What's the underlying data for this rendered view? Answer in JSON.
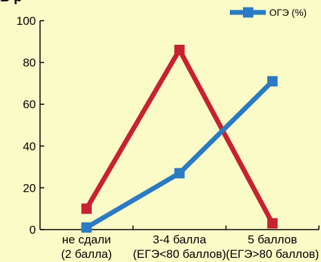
{
  "chart_data": {
    "type": "line",
    "title": "",
    "xlabel": "",
    "ylabel": "",
    "ylim": [
      0,
      100
    ],
    "yticks": [
      0,
      20,
      40,
      60,
      80,
      100
    ],
    "grid": false,
    "legend_placement": "top-right",
    "categories": [
      [
        "не сдали",
        "(2 балла)"
      ],
      [
        "3-4 балла",
        "(ЕГЭ<80 баллов)"
      ],
      [
        "5 баллов",
        "(ЕГЭ>80 баллов)"
      ]
    ],
    "series": [
      {
        "name": "",
        "color": "#c8212f",
        "marker": "square",
        "values": [
          10,
          86,
          3
        ]
      },
      {
        "name": "ОГЭ (%)",
        "color": "#2a7ac4",
        "marker": "square",
        "values": [
          1,
          27,
          71
        ]
      }
    ]
  }
}
